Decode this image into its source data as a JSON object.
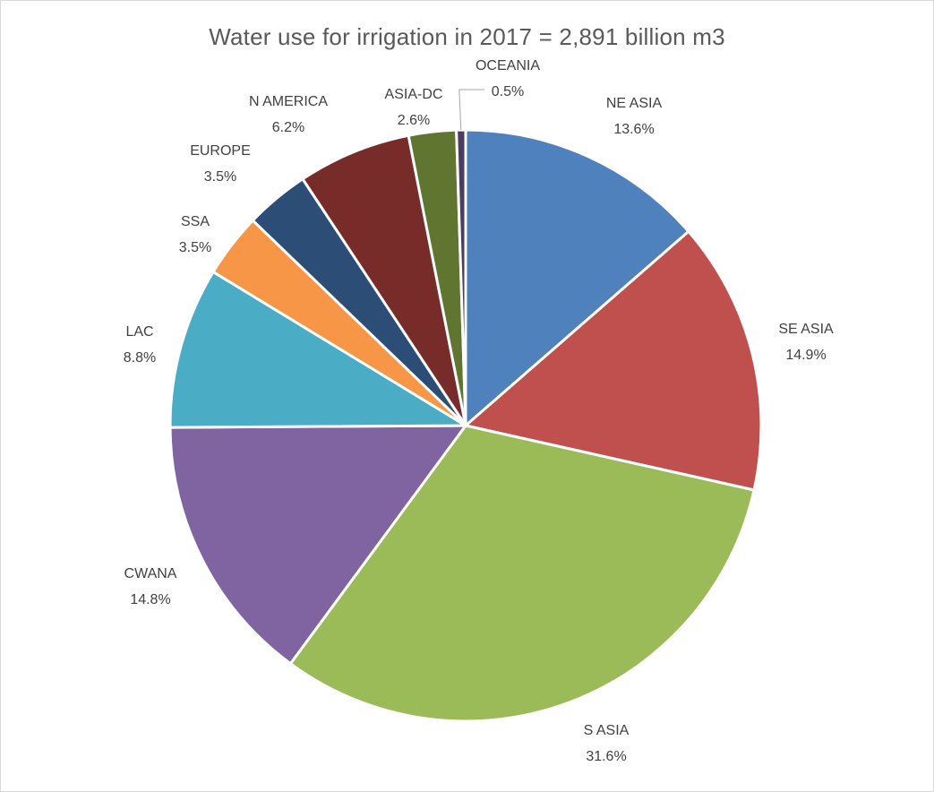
{
  "chart_data": {
    "type": "pie",
    "title": "Water use for irrigation in 2017 = 2,891 billion m3",
    "slices": [
      {
        "label": "NE ASIA",
        "value": 13.6,
        "value_label": "13.6%",
        "color": "#4f81bd"
      },
      {
        "label": "SE ASIA",
        "value": 14.9,
        "value_label": "14.9%",
        "color": "#c0504d"
      },
      {
        "label": "S ASIA",
        "value": 31.6,
        "value_label": "31.6%",
        "color": "#9bbb59"
      },
      {
        "label": "CWANA",
        "value": 14.8,
        "value_label": "14.8%",
        "color": "#8064a2"
      },
      {
        "label": "LAC",
        "value": 8.8,
        "value_label": "8.8%",
        "color": "#4bacc6"
      },
      {
        "label": "SSA",
        "value": 3.5,
        "value_label": "3.5%",
        "color": "#f79646"
      },
      {
        "label": "EUROPE",
        "value": 3.5,
        "value_label": "3.5%",
        "color": "#2c4d75"
      },
      {
        "label": "N AMERICA",
        "value": 6.2,
        "value_label": "6.2%",
        "color": "#772c2a"
      },
      {
        "label": "ASIA-DC",
        "value": 2.6,
        "value_label": "2.6%",
        "color": "#5f7530"
      },
      {
        "label": "OCEANIA",
        "value": 0.5,
        "value_label": "0.5%",
        "color": "#4d3b62"
      }
    ],
    "start_angle": "12 o'clock",
    "direction": "clockwise",
    "legend": "none",
    "data_labels": "outside, category name and percentage"
  }
}
